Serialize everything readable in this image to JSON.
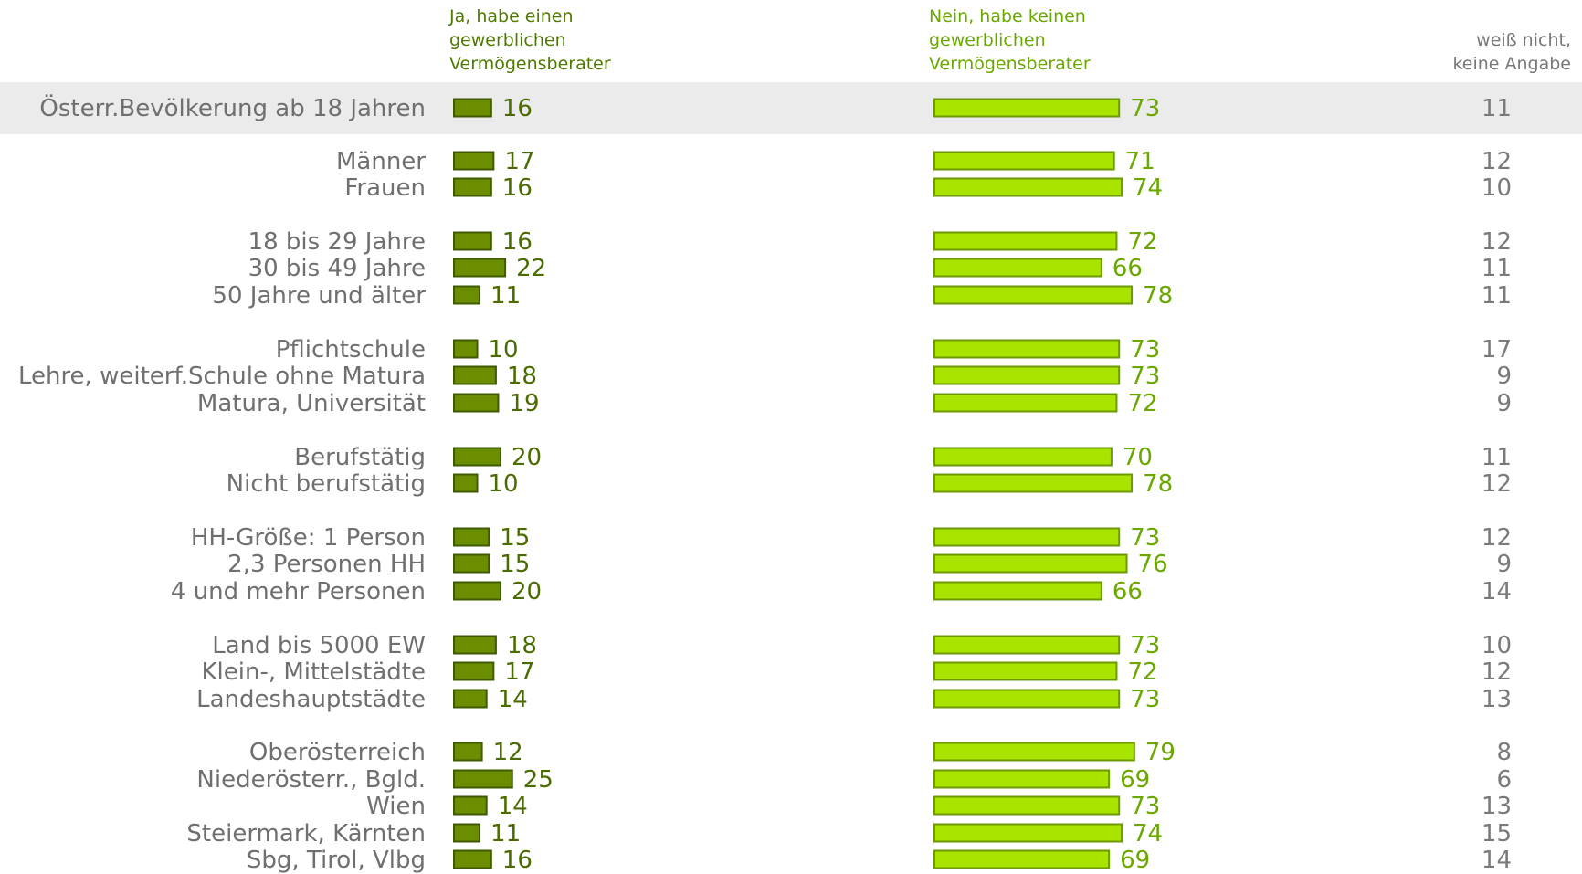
{
  "chart_data": {
    "type": "bar",
    "columns": {
      "yes": "Ja, habe einen\ngewerblichen\nVermögensberater",
      "no": "Nein, habe keinen\ngewerblichen\nVermögensberater",
      "dont_know": "weiß nicht,\nkeine Angabe"
    },
    "colors": {
      "yes": "#6b8e00",
      "no": "#a8e400",
      "highlight": "#ebebeb"
    },
    "categories": [
      "Österr.Bevölkerung ab 18 Jahren",
      "Männer",
      "Frauen",
      "18 bis 29 Jahre",
      "30 bis 49 Jahre",
      "50 Jahre und älter",
      "Pflichtschule",
      "Lehre, weiterf.Schule ohne Matura",
      "Matura, Universität",
      "Berufstätig",
      "Nicht berufstätig",
      "HH-Größe: 1 Person",
      "2,3 Personen HH",
      "4 und mehr Personen",
      "Land bis 5000 EW",
      "Klein-, Mittelstädte",
      "Landeshauptstädte",
      "Oberösterreich",
      "Niederösterr., Bgld.",
      "Wien",
      "Steiermark, Kärnten",
      "Sbg, Tirol, Vlbg"
    ],
    "series": [
      {
        "name": "Ja, habe einen gewerblichen Vermögensberater",
        "values": [
          16,
          17,
          16,
          16,
          22,
          11,
          10,
          18,
          19,
          20,
          10,
          15,
          15,
          20,
          18,
          17,
          14,
          12,
          25,
          14,
          11,
          16
        ]
      },
      {
        "name": "Nein, habe keinen gewerblichen Vermögensberater",
        "values": [
          73,
          71,
          74,
          72,
          66,
          78,
          73,
          73,
          72,
          70,
          78,
          73,
          76,
          66,
          73,
          72,
          73,
          79,
          69,
          73,
          74,
          69
        ]
      },
      {
        "name": "weiß nicht, keine Angabe",
        "values": [
          11,
          12,
          10,
          12,
          11,
          11,
          17,
          9,
          9,
          11,
          12,
          12,
          9,
          14,
          10,
          12,
          13,
          8,
          6,
          13,
          15,
          14
        ]
      }
    ],
    "groups": [
      [
        0
      ],
      [
        1,
        2
      ],
      [
        3,
        4,
        5
      ],
      [
        6,
        7,
        8
      ],
      [
        9,
        10
      ],
      [
        11,
        12,
        13
      ],
      [
        14,
        15,
        16
      ],
      [
        17,
        18,
        19,
        20,
        21
      ]
    ],
    "highlighted_category": "Österr.Bevölkerung ab 18 Jahren",
    "legend": "none",
    "grid": false
  }
}
